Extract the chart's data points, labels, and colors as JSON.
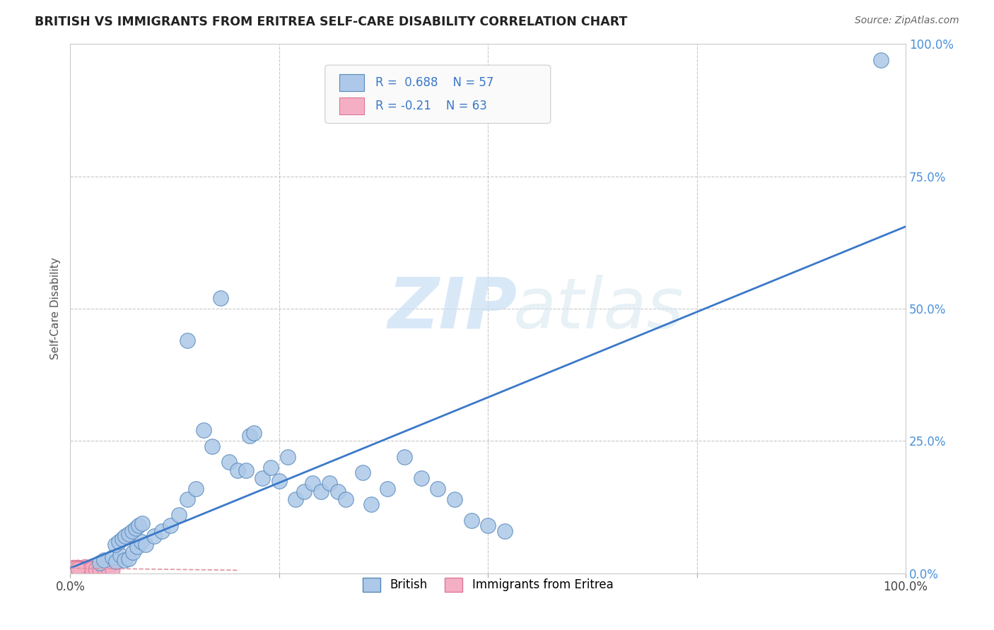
{
  "title": "BRITISH VS IMMIGRANTS FROM ERITREA SELF-CARE DISABILITY CORRELATION CHART",
  "source_text": "Source: ZipAtlas.com",
  "ylabel": "Self-Care Disability",
  "xlim": [
    0,
    1.0
  ],
  "ylim": [
    0,
    1.0
  ],
  "xticks": [
    0.0,
    0.25,
    0.5,
    0.75,
    1.0
  ],
  "yticks": [
    0.0,
    0.25,
    0.5,
    0.75,
    1.0
  ],
  "xtick_labels_show": [
    "0.0%",
    "",
    "",
    "",
    "100.0%"
  ],
  "ytick_labels_right": [
    "0.0%",
    "25.0%",
    "50.0%",
    "75.0%",
    "100.0%"
  ],
  "british_color": "#adc8e8",
  "eritrea_color": "#f4afc4",
  "british_edge_color": "#5588bb",
  "eritrea_edge_color": "#dd7799",
  "trend_blue_color": "#3a78c9",
  "trend_pink_color": "#e090a0",
  "R_british": 0.688,
  "N_british": 57,
  "R_eritrea": -0.21,
  "N_eritrea": 63,
  "background_color": "#ffffff",
  "grid_color": "#c8c8c8",
  "legend_label_british": "British",
  "legend_label_eritrea": "Immigrants from Eritrea",
  "watermark_zip": "ZIP",
  "watermark_atlas": "atlas",
  "british_x": [
    0.97,
    0.14,
    0.18,
    0.035,
    0.04,
    0.05,
    0.055,
    0.06,
    0.065,
    0.07,
    0.075,
    0.08,
    0.085,
    0.09,
    0.1,
    0.11,
    0.12,
    0.13,
    0.14,
    0.15,
    0.16,
    0.17,
    0.19,
    0.2,
    0.21,
    0.215,
    0.22,
    0.23,
    0.24,
    0.25,
    0.26,
    0.27,
    0.28,
    0.29,
    0.3,
    0.31,
    0.32,
    0.33,
    0.35,
    0.36,
    0.38,
    0.4,
    0.42,
    0.44,
    0.46,
    0.48,
    0.5,
    0.52,
    0.054,
    0.058,
    0.062,
    0.066,
    0.07,
    0.074,
    0.078,
    0.082,
    0.086
  ],
  "british_y": [
    0.97,
    0.44,
    0.52,
    0.02,
    0.025,
    0.03,
    0.022,
    0.035,
    0.025,
    0.028,
    0.04,
    0.05,
    0.06,
    0.055,
    0.07,
    0.08,
    0.09,
    0.11,
    0.14,
    0.16,
    0.27,
    0.24,
    0.21,
    0.195,
    0.195,
    0.26,
    0.265,
    0.18,
    0.2,
    0.175,
    0.22,
    0.14,
    0.155,
    0.17,
    0.155,
    0.17,
    0.155,
    0.14,
    0.19,
    0.13,
    0.16,
    0.22,
    0.18,
    0.16,
    0.14,
    0.1,
    0.09,
    0.08,
    0.055,
    0.06,
    0.065,
    0.07,
    0.075,
    0.08,
    0.085,
    0.09,
    0.095
  ],
  "eritrea_x": [
    0.005,
    0.007,
    0.009,
    0.011,
    0.013,
    0.015,
    0.017,
    0.019,
    0.021,
    0.023,
    0.025,
    0.027,
    0.029,
    0.031,
    0.033,
    0.035,
    0.037,
    0.039,
    0.041,
    0.043,
    0.008,
    0.012,
    0.016,
    0.02,
    0.024,
    0.028,
    0.032,
    0.036,
    0.04,
    0.044,
    0.006,
    0.01,
    0.014,
    0.018,
    0.022,
    0.026,
    0.03,
    0.034,
    0.038,
    0.042,
    0.004,
    0.008,
    0.012,
    0.016,
    0.02,
    0.024,
    0.028,
    0.032,
    0.036,
    0.04,
    0.005,
    0.01,
    0.015,
    0.02,
    0.025,
    0.03,
    0.035,
    0.04,
    0.045,
    0.05,
    0.003,
    0.006,
    0.009
  ],
  "eritrea_y": [
    0.01,
    0.008,
    0.012,
    0.009,
    0.011,
    0.007,
    0.013,
    0.008,
    0.01,
    0.009,
    0.011,
    0.008,
    0.01,
    0.009,
    0.008,
    0.01,
    0.009,
    0.008,
    0.01,
    0.009,
    0.012,
    0.01,
    0.009,
    0.008,
    0.01,
    0.009,
    0.008,
    0.01,
    0.009,
    0.008,
    0.011,
    0.01,
    0.009,
    0.008,
    0.01,
    0.009,
    0.008,
    0.01,
    0.009,
    0.008,
    0.012,
    0.01,
    0.009,
    0.008,
    0.01,
    0.009,
    0.008,
    0.01,
    0.009,
    0.008,
    0.01,
    0.009,
    0.008,
    0.007,
    0.009,
    0.008,
    0.007,
    0.009,
    0.008,
    0.007,
    0.011,
    0.01,
    0.009
  ],
  "trend_british_x0": 0.0,
  "trend_british_y0": 0.01,
  "trend_british_x1": 1.0,
  "trend_british_y1": 0.655,
  "trend_eritrea_x0": 0.0,
  "trend_eritrea_y0": 0.01,
  "trend_eritrea_x1": 0.2,
  "trend_eritrea_y1": 0.006
}
